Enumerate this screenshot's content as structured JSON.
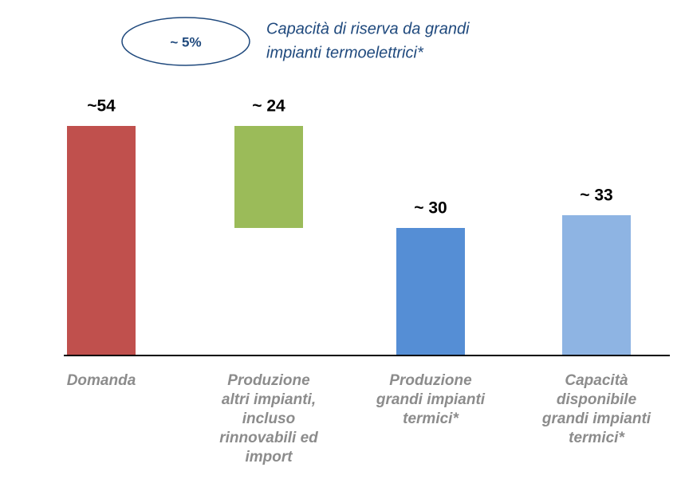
{
  "chart_data": {
    "type": "waterfall",
    "categories": [
      [
        "Domanda"
      ],
      [
        "Produzione",
        "altri impianti,",
        "incluso",
        "rinnovabili ed",
        "import"
      ],
      [
        "Produzione",
        "grandi impianti",
        "termici*"
      ],
      [
        "Capacità",
        "disponibile",
        "grandi impianti",
        "termici*"
      ]
    ],
    "values": [
      54,
      24,
      30,
      33
    ],
    "value_labels": [
      "~54",
      "~ 24",
      "~ 30",
      "~ 33"
    ],
    "measure": [
      "absolute",
      "decrease",
      "absolute",
      "absolute"
    ],
    "colors": [
      "#c0504d",
      "#9bbb59",
      "#558ed5",
      "#8eb4e3"
    ],
    "ylim": [
      0,
      60
    ],
    "annotation": {
      "badge": "~ 5%",
      "lines": [
        "Capacità di riserva da grandi",
        "impianti termoelettrici*"
      ]
    }
  }
}
